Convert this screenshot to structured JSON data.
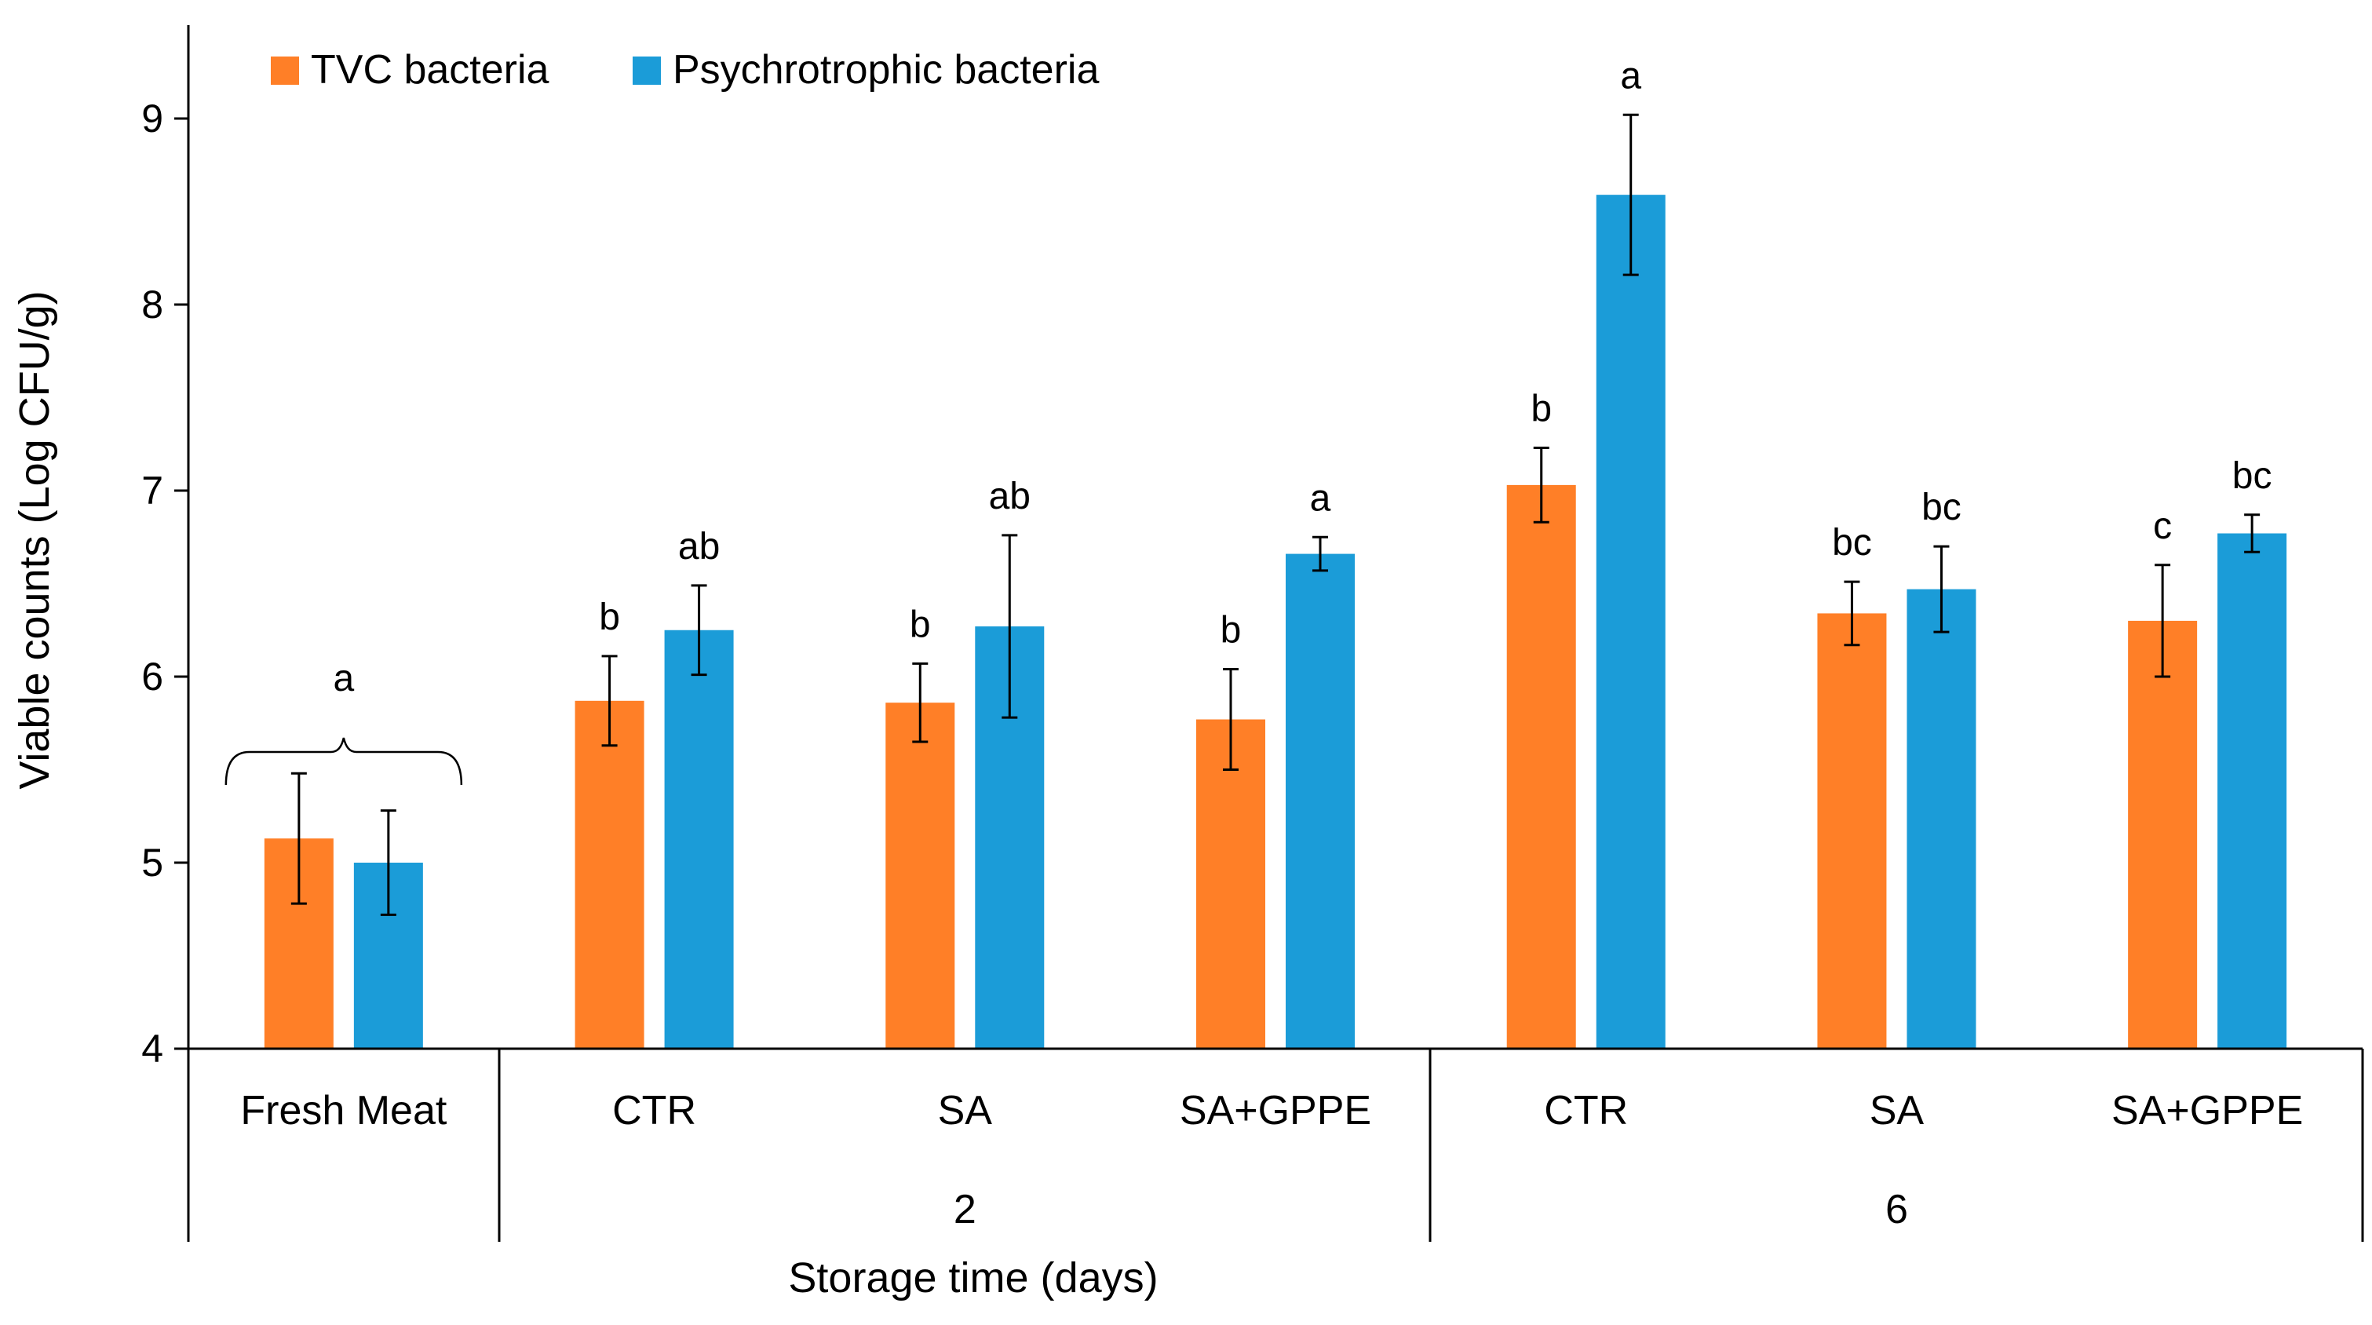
{
  "chart_data": {
    "type": "bar",
    "title": "",
    "xlabel": "Storage time (days)",
    "ylabel": "Viable counts (Log CFU/g)",
    "ylim": [
      4,
      9.5
    ],
    "yticks": [
      "4",
      "5",
      "6",
      "7",
      "8",
      "9"
    ],
    "categories": [
      "Fresh Meat",
      "CTR",
      "SA",
      "SA+GPPE",
      "CTR",
      "SA",
      "SA+GPPE"
    ],
    "groups": [
      {
        "label": "",
        "categories": [
          0
        ]
      },
      {
        "label": "2",
        "categories": [
          1,
          2,
          3
        ]
      },
      {
        "label": "6",
        "categories": [
          4,
          5,
          6
        ]
      }
    ],
    "series": [
      {
        "name": "TVC bacteria",
        "color": "#FF7F27",
        "values": [
          5.13,
          5.87,
          5.86,
          5.77,
          7.03,
          6.34,
          6.3
        ],
        "errors": [
          0.35,
          0.24,
          0.21,
          0.27,
          0.2,
          0.17,
          0.3
        ],
        "labels": [
          "",
          "b",
          "b",
          "b",
          "b",
          "bc",
          "c"
        ]
      },
      {
        "name": "Psychrotrophic bacteria",
        "color": "#1B9CD8",
        "values": [
          5.0,
          6.25,
          6.27,
          6.66,
          8.59,
          6.47,
          6.77
        ],
        "errors": [
          0.28,
          0.24,
          0.49,
          0.09,
          0.43,
          0.23,
          0.1
        ],
        "labels": [
          "",
          "ab",
          "ab",
          "a",
          "a",
          "bc",
          "bc"
        ]
      }
    ],
    "annotations": [
      {
        "text": "a",
        "target": "Fresh Meat",
        "type": "brace"
      }
    ],
    "legend": "top-left"
  }
}
